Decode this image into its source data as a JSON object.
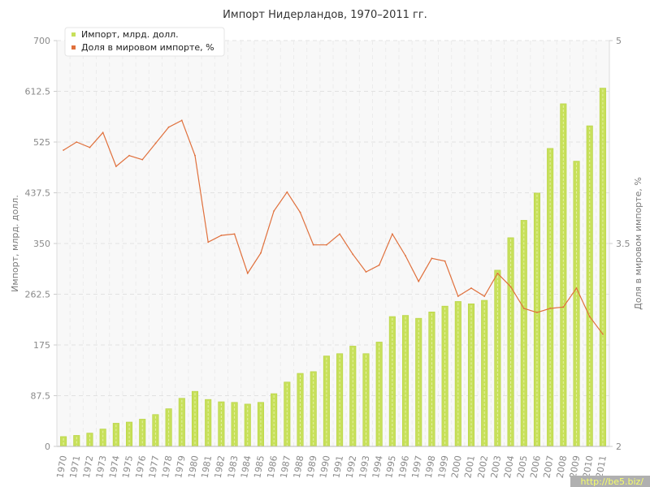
{
  "chart_data": {
    "type": "bar",
    "title": "Импорт Нидерландов, 1970–2011 гг.",
    "ylabel": "Импорт, млрд. долл.",
    "y2label": "Доля в мировом импорте, %",
    "categories": [
      "1970",
      "1971",
      "1972",
      "1973",
      "1974",
      "1975",
      "1976",
      "1977",
      "1978",
      "1979",
      "1980",
      "1981",
      "1982",
      "1983",
      "1984",
      "1985",
      "1986",
      "1987",
      "1988",
      "1989",
      "1990",
      "1991",
      "1992",
      "1993",
      "1994",
      "1995",
      "1996",
      "1997",
      "1998",
      "1999",
      "2000",
      "2001",
      "2002",
      "2003",
      "2004",
      "2005",
      "2006",
      "2007",
      "2008",
      "2009",
      "2010",
      "2011"
    ],
    "ylim": [
      0,
      700
    ],
    "yticks": [
      "0",
      "87.5",
      "175",
      "262.5",
      "350",
      "437.5",
      "525",
      "612.5",
      "700"
    ],
    "y2lim": [
      2,
      5
    ],
    "y2ticks": [
      "2",
      "3.5",
      "5"
    ],
    "series": [
      {
        "name": "Импорт, млрд. долл.",
        "type": "bar",
        "color": "#c7e05a",
        "axis": "left",
        "values": [
          17,
          19,
          23,
          30,
          40,
          42,
          47,
          55,
          65,
          83,
          95,
          81,
          77,
          76,
          73,
          76,
          91,
          111,
          126,
          129,
          156,
          160,
          173,
          160,
          180,
          224,
          226,
          221,
          232,
          242,
          250,
          246,
          252,
          304,
          360,
          390,
          437,
          514,
          591,
          492,
          553,
          618
        ]
      },
      {
        "name": "Доля в мировом импорте, %",
        "type": "line",
        "color": "#e0703c",
        "axis": "right",
        "values": [
          4.19,
          4.25,
          4.21,
          4.32,
          4.07,
          4.15,
          4.12,
          4.24,
          4.36,
          4.41,
          4.15,
          3.51,
          3.56,
          3.57,
          3.28,
          3.43,
          3.74,
          3.88,
          3.73,
          3.49,
          3.49,
          3.57,
          3.42,
          3.29,
          3.34,
          3.57,
          3.41,
          3.22,
          3.39,
          3.37,
          3.11,
          3.17,
          3.11,
          3.28,
          3.18,
          3.02,
          2.99,
          3.02,
          3.03,
          3.17,
          2.96,
          2.83
        ]
      }
    ],
    "grid": true,
    "legend_position": "top-left"
  },
  "watermark": "http://be5.biz/"
}
